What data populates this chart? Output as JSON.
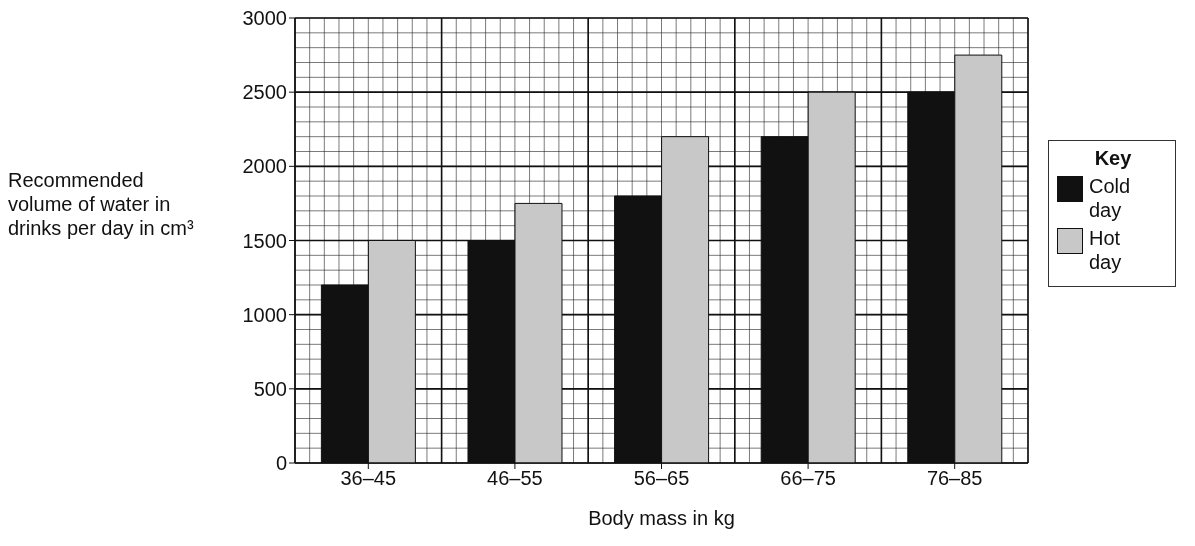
{
  "chart_data": {
    "type": "bar",
    "xlabel": "Body mass in kg",
    "ylabel": "Recommended volume of water in drinks per day in cm³",
    "legend_title": "Key",
    "categories": [
      "36–45",
      "46–55",
      "56–65",
      "66–75",
      "76–85"
    ],
    "series": [
      {
        "name": "Cold day",
        "color": "#111111",
        "values": [
          1200,
          1500,
          1800,
          2200,
          2500
        ]
      },
      {
        "name": "Hot day",
        "color": "#c8c8c8",
        "values": [
          1500,
          1750,
          2200,
          2500,
          2750
        ]
      }
    ],
    "ylim": [
      0,
      3000
    ],
    "yticks": [
      0,
      500,
      1000,
      1500,
      2000,
      2500,
      3000
    ],
    "grid": true,
    "legend": "right"
  }
}
